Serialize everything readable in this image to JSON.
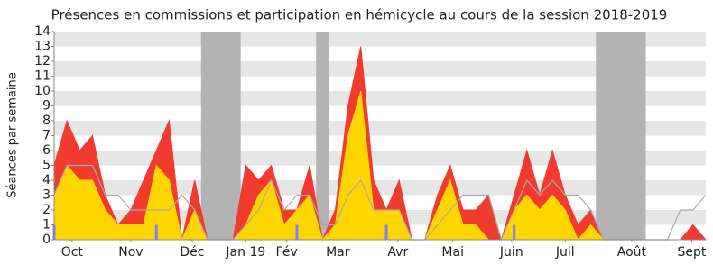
{
  "chart_data": {
    "type": "area",
    "title": "Présences en commissions et participation en hémicycle au cours de la session 2018-2019",
    "ylabel": "Séances par semaine",
    "x": [
      0,
      1,
      2,
      3,
      4,
      5,
      6,
      7,
      8,
      9,
      10,
      11,
      12,
      13,
      14,
      15,
      16,
      17,
      18,
      19,
      20,
      21,
      22,
      23,
      24,
      25,
      26,
      27,
      28,
      29,
      30,
      31,
      32,
      33,
      34,
      35,
      36,
      37,
      38,
      39,
      40,
      41,
      42,
      43,
      44,
      45,
      46,
      47,
      48,
      49,
      50,
      51
    ],
    "xlim": [
      0,
      51
    ],
    "xticks": [
      {
        "value": 1.4,
        "label": "Oct"
      },
      {
        "value": 6,
        "label": "Nov"
      },
      {
        "value": 10.8,
        "label": "Déc"
      },
      {
        "value": 15,
        "label": "Jan 19"
      },
      {
        "value": 18.2,
        "label": "Fév"
      },
      {
        "value": 22.2,
        "label": "Mar"
      },
      {
        "value": 26.9,
        "label": "Avr"
      },
      {
        "value": 31.2,
        "label": "Mai"
      },
      {
        "value": 35.8,
        "label": "Juin"
      },
      {
        "value": 40,
        "label": "Juil"
      },
      {
        "value": 45.2,
        "label": "Août"
      },
      {
        "value": 49.9,
        "label": "Sept"
      }
    ],
    "ylim": [
      0,
      14
    ],
    "yticks": [
      0,
      1,
      2,
      3,
      4,
      5,
      6,
      7,
      8,
      9,
      10,
      11,
      12,
      13,
      14
    ],
    "vacations": [
      [
        11.5,
        14.6
      ],
      [
        20.5,
        21.5
      ],
      [
        42.4,
        46.3
      ]
    ],
    "vacation_color": "#b3b3b3",
    "stripe_color": "#e6e6e6",
    "series": [
      {
        "kind": "area",
        "color": "#f23b2f",
        "values": [
          5,
          8,
          6,
          7,
          3,
          1,
          2,
          4,
          6,
          8,
          0,
          4,
          0,
          0,
          0,
          5,
          4,
          5,
          2,
          2,
          5,
          0,
          2,
          9,
          13,
          4,
          2,
          4,
          0,
          0,
          3,
          5,
          2,
          2,
          3,
          0,
          3,
          6,
          3,
          6,
          3,
          1,
          2,
          0,
          0,
          0,
          0,
          0,
          0,
          0,
          1,
          0
        ]
      },
      {
        "kind": "area",
        "color": "#ffd500",
        "values": [
          3,
          5,
          4,
          4,
          2,
          1,
          1,
          1,
          5,
          4,
          0,
          2,
          0,
          0,
          0,
          1,
          3,
          4,
          1,
          2,
          3,
          0,
          1,
          7,
          10,
          2,
          2,
          2,
          0,
          0,
          2,
          4,
          1,
          1,
          0,
          0,
          2,
          3,
          2,
          3,
          2,
          0,
          1,
          0,
          0,
          0,
          0,
          0,
          0,
          0,
          0,
          0
        ]
      },
      {
        "kind": "line",
        "color": "#aaaaaa",
        "values": [
          3,
          5,
          5,
          5,
          3,
          3,
          2,
          2,
          2,
          2,
          3,
          2,
          0,
          0,
          0,
          1,
          2,
          4,
          2,
          3,
          3,
          1,
          1,
          3,
          4,
          2,
          2,
          2,
          0,
          0,
          1,
          2,
          3,
          3,
          3,
          0,
          2,
          4,
          3,
          4,
          3,
          3,
          2,
          0,
          0,
          0,
          0,
          0,
          0,
          2,
          2,
          3
        ]
      },
      {
        "kind": "bar",
        "color": "#7f7fff",
        "x": [
          0,
          8,
          19,
          26,
          36
        ],
        "values": [
          1,
          1,
          1,
          1,
          1
        ]
      }
    ]
  }
}
